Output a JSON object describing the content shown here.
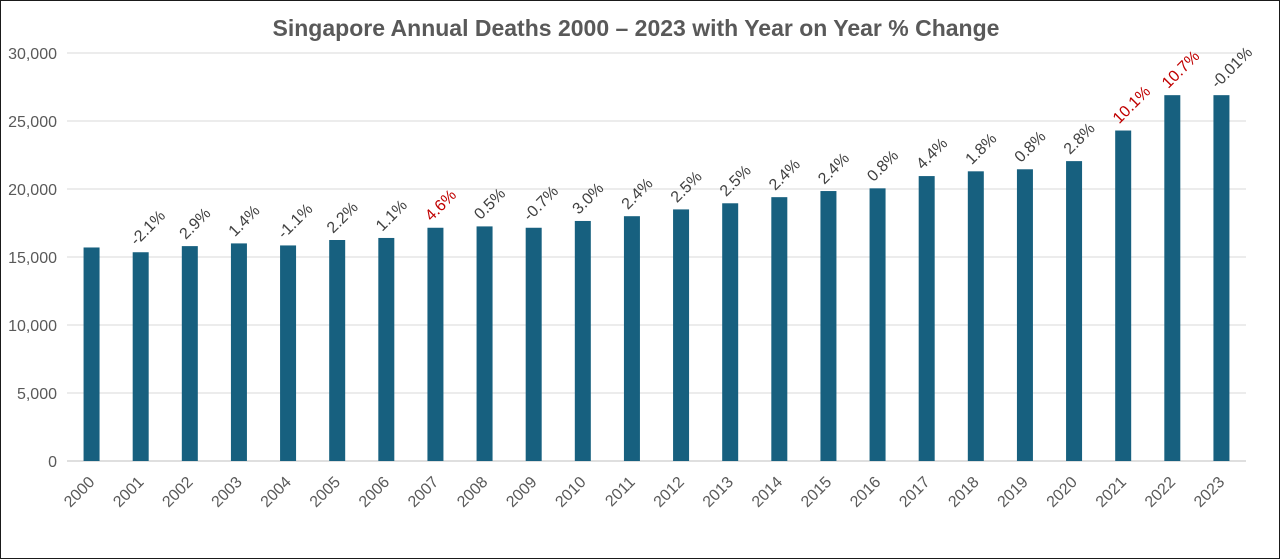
{
  "chart_data": {
    "type": "bar",
    "title": "Singapore Annual Deaths 2000 – 2023 with Year on Year % Change",
    "xlabel": "",
    "ylabel": "",
    "ylim": [
      0,
      30000
    ],
    "yticks": [
      "0",
      "5,000",
      "10,000",
      "15,000",
      "20,000",
      "25,000",
      "30,000"
    ],
    "ytick_values": [
      0,
      5000,
      10000,
      15000,
      20000,
      25000,
      30000
    ],
    "grid": true,
    "legend": "none",
    "categories": [
      "2000",
      "2001",
      "2002",
      "2003",
      "2004",
      "2005",
      "2006",
      "2007",
      "2008",
      "2009",
      "2010",
      "2011",
      "2012",
      "2013",
      "2014",
      "2015",
      "2016",
      "2017",
      "2018",
      "2019",
      "2020",
      "2021",
      "2022",
      "2023"
    ],
    "values": [
      15700,
      15350,
      15800,
      16000,
      15850,
      16250,
      16400,
      17150,
      17250,
      17150,
      17650,
      18000,
      18500,
      18950,
      19400,
      19850,
      20050,
      20950,
      21300,
      21450,
      22050,
      24300,
      26900,
      26900
    ],
    "data_labels": [
      "",
      "-2.1%",
      "2.9%",
      "1.4%",
      "-1.1%",
      "2.2%",
      "1.1%",
      "4.6%",
      "0.5%",
      "-0.7%",
      "3.0%",
      "2.4%",
      "2.5%",
      "2.5%",
      "2.4%",
      "2.4%",
      "0.8%",
      "4.4%",
      "1.8%",
      "0.8%",
      "2.8%",
      "10.1%",
      "10.7%",
      "-0.01%"
    ],
    "highlight_labels": [
      "4.6%",
      "10.1%",
      "10.7%"
    ],
    "colors": {
      "bar": "#17607f",
      "label": "#404040",
      "highlight": "#c00000",
      "grid": "#d9d9d9",
      "axis": "#bfbfbf"
    }
  }
}
